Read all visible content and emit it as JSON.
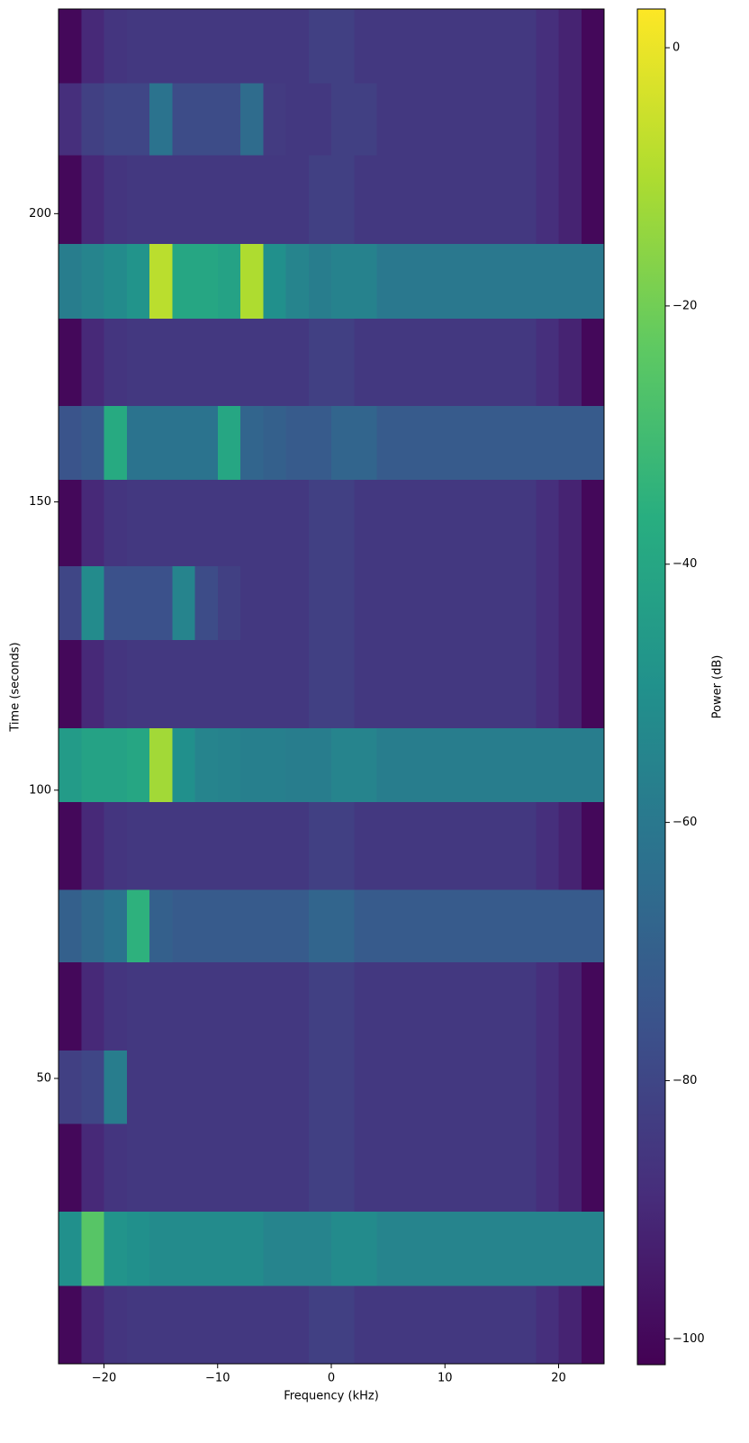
{
  "chart_data": {
    "type": "heatmap",
    "xlabel": "Frequency (kHz)",
    "ylabel": "Time (seconds)",
    "colorbar_label": "Power (dB)",
    "colormap": "viridis",
    "xlim": [
      -24,
      24
    ],
    "ylim": [
      0.5,
      235.5
    ],
    "clim": [
      -102,
      3
    ],
    "xticks": [
      {
        "value": -20,
        "label": "−20"
      },
      {
        "value": -10,
        "label": "−10"
      },
      0,
      10,
      20
    ],
    "yticks": [
      50,
      100,
      150,
      200
    ],
    "cticks": [
      {
        "value": -100,
        "label": "−100"
      },
      {
        "value": -80,
        "label": "−80"
      },
      {
        "value": -60,
        "label": "−60"
      },
      {
        "value": -40,
        "label": "−40"
      },
      {
        "value": -20,
        "label": "−20"
      },
      0
    ],
    "x": [
      -24,
      -22,
      -20,
      -18,
      -16,
      -14,
      -12,
      -10,
      -8,
      -6,
      -4,
      -2,
      0,
      2,
      4,
      6,
      8,
      10,
      12,
      14,
      16,
      18,
      20,
      22,
      24
    ],
    "y": [
      0.5,
      14.1,
      27,
      42.2,
      54.9,
      70.2,
      82.8,
      98,
      110.8,
      126.1,
      138.9,
      153.9,
      166.7,
      181.9,
      194.8,
      210.2,
      222.7,
      235.5
    ],
    "z": [
      [
        -100,
        -90,
        -86,
        -85,
        -85,
        -85,
        -85,
        -85,
        -85,
        -85,
        -85,
        -82,
        -82,
        -85,
        -85,
        -85,
        -85,
        -85,
        -85,
        -85,
        -85,
        -88,
        -92,
        -100
      ],
      [
        -50,
        -25,
        -48,
        -50,
        -52,
        -52,
        -52,
        -52,
        -52,
        -55,
        -55,
        -55,
        -52,
        -52,
        -55,
        -55,
        -55,
        -55,
        -55,
        -55,
        -55,
        -55,
        -55,
        -55
      ],
      [
        -100,
        -90,
        -86,
        -85,
        -85,
        -85,
        -85,
        -85,
        -85,
        -85,
        -85,
        -82,
        -82,
        -85,
        -85,
        -85,
        -85,
        -85,
        -85,
        -85,
        -85,
        -88,
        -92,
        -100
      ],
      [
        -82,
        -80,
        -58,
        -85,
        -85,
        -85,
        -85,
        -85,
        -85,
        -85,
        -85,
        -82,
        -82,
        -85,
        -85,
        -85,
        -85,
        -85,
        -85,
        -85,
        -85,
        -88,
        -92,
        -100
      ],
      [
        -100,
        -90,
        -86,
        -85,
        -85,
        -85,
        -85,
        -85,
        -85,
        -85,
        -85,
        -82,
        -82,
        -85,
        -85,
        -85,
        -85,
        -85,
        -85,
        -85,
        -85,
        -88,
        -92,
        -100
      ],
      [
        -70,
        -66,
        -62,
        -35,
        -70,
        -72,
        -72,
        -72,
        -72,
        -72,
        -72,
        -68,
        -68,
        -72,
        -72,
        -72,
        -72,
        -72,
        -72,
        -72,
        -72,
        -72,
        -72,
        -72
      ],
      [
        -100,
        -90,
        -86,
        -85,
        -85,
        -85,
        -85,
        -85,
        -85,
        -85,
        -85,
        -82,
        -82,
        -85,
        -85,
        -85,
        -85,
        -85,
        -85,
        -85,
        -85,
        -88,
        -92,
        -100
      ],
      [
        -45,
        -42,
        -42,
        -40,
        -12,
        -50,
        -55,
        -56,
        -57,
        -57,
        -58,
        -58,
        -55,
        -55,
        -58,
        -58,
        -58,
        -58,
        -58,
        -58,
        -58,
        -58,
        -58,
        -58
      ],
      [
        -100,
        -90,
        -86,
        -85,
        -85,
        -85,
        -85,
        -85,
        -85,
        -85,
        -85,
        -82,
        -82,
        -85,
        -85,
        -85,
        -85,
        -85,
        -85,
        -85,
        -85,
        -88,
        -92,
        -100
      ],
      [
        -80,
        -52,
        -76,
        -76,
        -76,
        -55,
        -78,
        -82,
        -85,
        -85,
        -85,
        -82,
        -82,
        -85,
        -85,
        -85,
        -85,
        -85,
        -85,
        -85,
        -85,
        -88,
        -92,
        -100
      ],
      [
        -100,
        -90,
        -86,
        -85,
        -85,
        -85,
        -85,
        -85,
        -85,
        -85,
        -85,
        -82,
        -82,
        -85,
        -85,
        -85,
        -85,
        -85,
        -85,
        -85,
        -85,
        -88,
        -92,
        -100
      ],
      [
        -75,
        -72,
        -38,
        -62,
        -62,
        -62,
        -62,
        -40,
        -68,
        -70,
        -72,
        -72,
        -68,
        -68,
        -72,
        -72,
        -72,
        -72,
        -72,
        -72,
        -72,
        -72,
        -72,
        -72
      ],
      [
        -100,
        -90,
        -86,
        -85,
        -85,
        -85,
        -85,
        -85,
        -85,
        -85,
        -85,
        -82,
        -82,
        -85,
        -85,
        -85,
        -85,
        -85,
        -85,
        -85,
        -85,
        -88,
        -92,
        -100
      ],
      [
        -58,
        -55,
        -52,
        -48,
        -8,
        -40,
        -40,
        -42,
        -10,
        -50,
        -55,
        -58,
        -56,
        -56,
        -60,
        -60,
        -60,
        -60,
        -60,
        -60,
        -60,
        -60,
        -60,
        -60
      ],
      [
        -100,
        -90,
        -86,
        -85,
        -85,
        -85,
        -85,
        -85,
        -85,
        -85,
        -85,
        -82,
        -82,
        -85,
        -85,
        -85,
        -85,
        -85,
        -85,
        -85,
        -85,
        -88,
        -92,
        -100
      ],
      [
        -88,
        -82,
        -80,
        -80,
        -62,
        -78,
        -78,
        -78,
        -65,
        -84,
        -85,
        -85,
        -82,
        -82,
        -85,
        -85,
        -85,
        -85,
        -85,
        -85,
        -85,
        -88,
        -92,
        -100
      ],
      [
        -100,
        -90,
        -86,
        -85,
        -85,
        -85,
        -85,
        -85,
        -85,
        -85,
        -85,
        -82,
        -82,
        -85,
        -85,
        -85,
        -85,
        -85,
        -85,
        -85,
        -85,
        -88,
        -92,
        -100
      ]
    ]
  }
}
